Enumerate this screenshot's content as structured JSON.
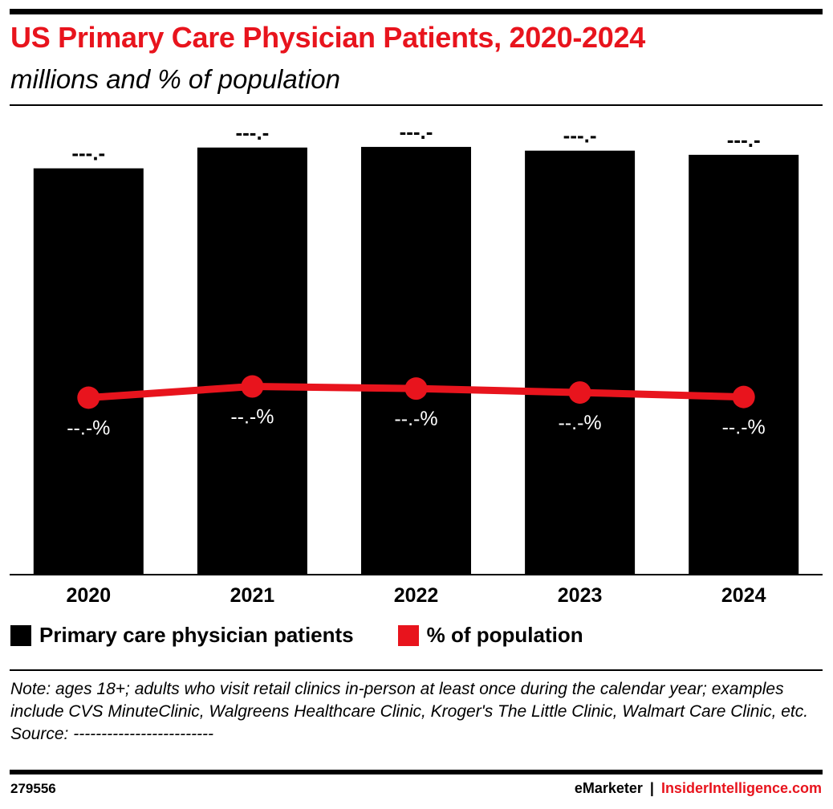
{
  "header": {
    "title": "US Primary Care Physician Patients, 2020-2024",
    "subtitle": "millions and % of population"
  },
  "colors": {
    "bar": "#000000",
    "line": "#e8141d",
    "accent": "#e8141d"
  },
  "chart_data": {
    "type": "bar",
    "categories": [
      "2020",
      "2021",
      "2022",
      "2023",
      "2024"
    ],
    "series": [
      {
        "name": "Primary care physician patients",
        "kind": "bar",
        "values": [
          195,
          205,
          205.3,
          203.5,
          201.5
        ],
        "labels": [
          "---.-",
          "---.-",
          "---.-",
          "---.-",
          "---.-"
        ]
      },
      {
        "name": "% of population",
        "kind": "line",
        "values": [
          75.3,
          80.1,
          79.2,
          77.5,
          75.6
        ],
        "labels": [
          "--.-%",
          "--.-%",
          "--.-%",
          "--.-%",
          "--.-%"
        ]
      }
    ],
    "ylim": [
      0,
      225
    ],
    "y2lim": [
      0,
      200
    ],
    "grid": false,
    "legend_position": "bottom-left"
  },
  "legend": {
    "items": [
      {
        "label": "Primary care physician patients",
        "color": "#000000"
      },
      {
        "label": "% of population",
        "color": "#e8141d"
      }
    ]
  },
  "note": {
    "text": "Note: ages 18+; adults who visit retail clinics in-person at least once during the calendar year; examples include CVS MinuteClinic, Walgreens Healthcare Clinic, Kroger's The Little Clinic, Walmart Care Clinic, etc.",
    "source": "Source: -------------------------"
  },
  "footer": {
    "id": "279556",
    "brand_em": "eMarketer",
    "separator": "|",
    "brand_ii": "InsiderIntelligence.com"
  }
}
